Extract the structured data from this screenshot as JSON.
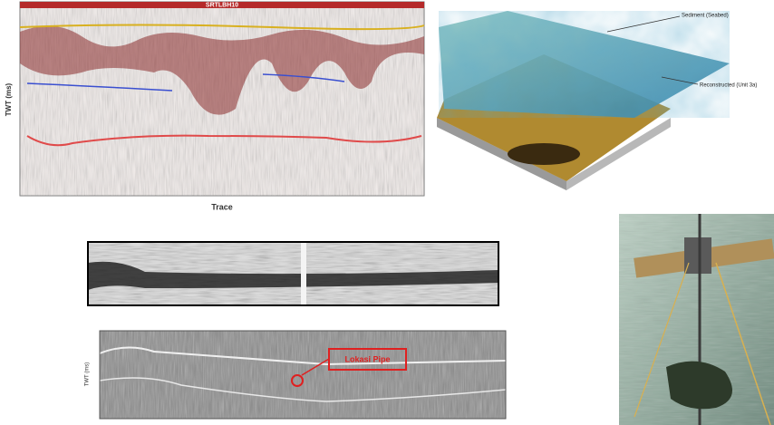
{
  "seismic_profile": {
    "title": "SRTLBH10",
    "x_label": "Trace",
    "y_label": "TWT (ms)"
  },
  "surface_model": {
    "labels": [
      "Sediment (Seabed)",
      "Reconstructed (Unit 3a)"
    ]
  },
  "pipe_profile": {
    "annotation": "Lokasi Pipe",
    "y_label": "TWT (ms)"
  }
}
